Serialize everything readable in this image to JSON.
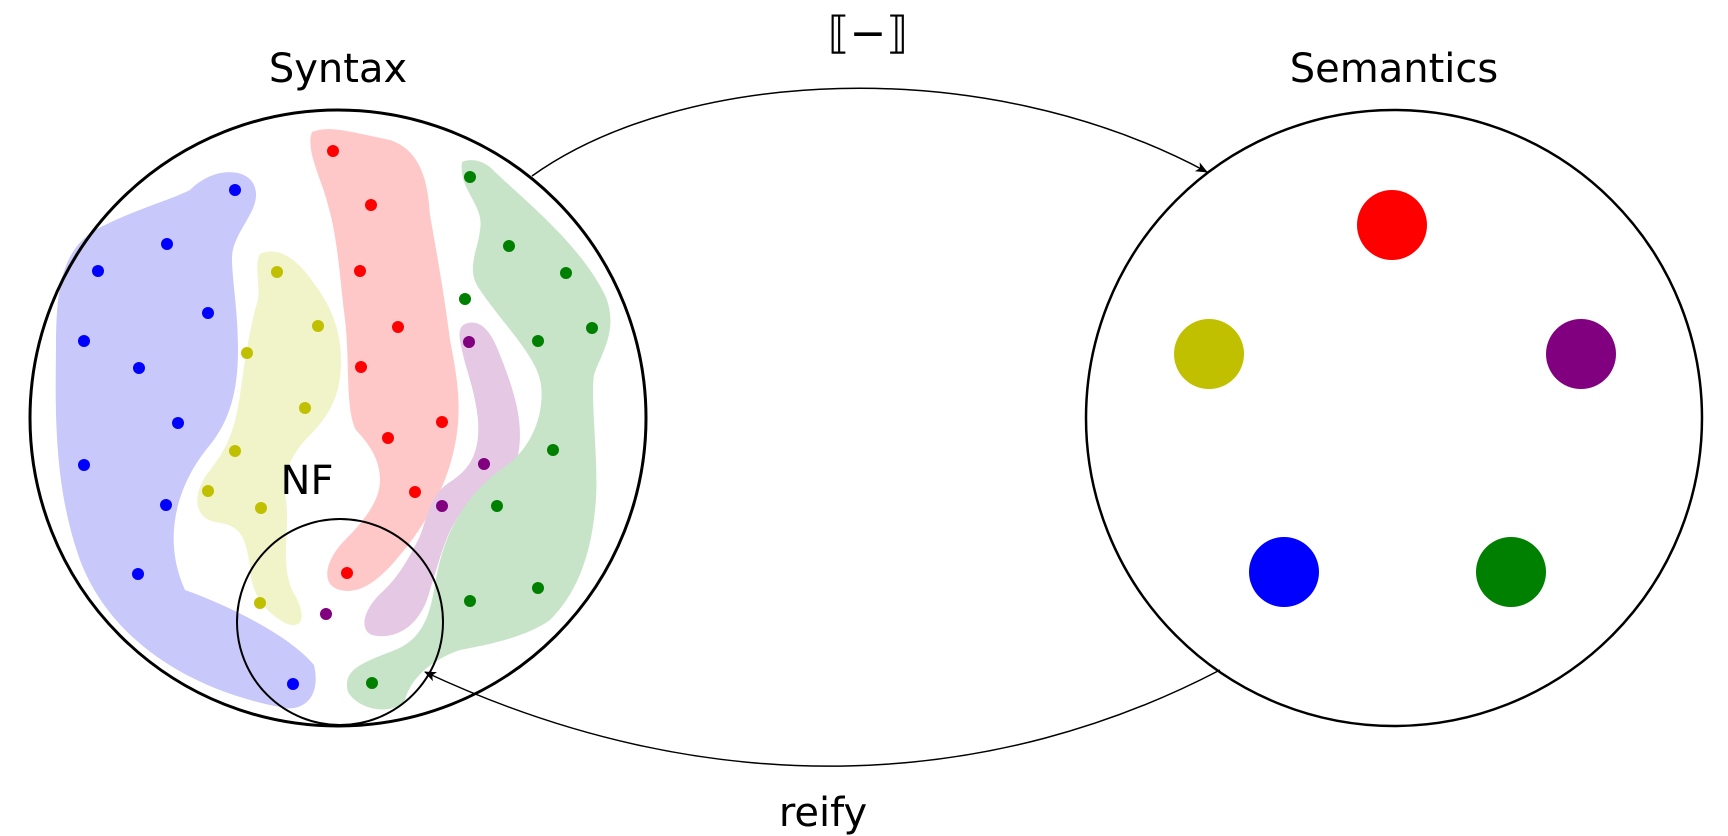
{
  "labels": {
    "syntax": "Syntax",
    "semantics": "Semantics",
    "normal_forms": "NF",
    "denotation": "⟦−⟧",
    "reify": "reify"
  },
  "colors": {
    "blue": "#0000ff",
    "yellow": "#c0c000",
    "red": "#ff0000",
    "purple": "#800080",
    "green": "#008000",
    "blue_region": "#c8c8fa",
    "yellow_region": "#f1f3c9",
    "red_region": "#ffc8c8",
    "purple_region": "#e4c8e4",
    "green_region": "#c8e4c8"
  },
  "classes": [
    {
      "color": "blue",
      "icon": "blue-equivalence-class"
    },
    {
      "color": "yellow",
      "icon": "yellow-equivalence-class"
    },
    {
      "color": "red",
      "icon": "red-equivalence-class"
    },
    {
      "color": "purple",
      "icon": "purple-equivalence-class"
    },
    {
      "color": "green",
      "icon": "green-equivalence-class"
    }
  ]
}
